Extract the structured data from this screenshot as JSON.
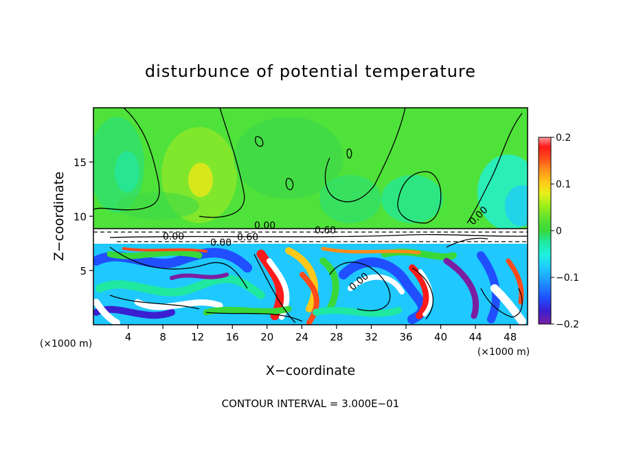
{
  "chart_data": {
    "type": "heatmap",
    "title": "disturbunce of potential temperature",
    "xlabel": "X−coordinate",
    "ylabel": "Z−coordinate",
    "x_unit_label": "(×1000 m)",
    "x_unit_label_right": "(×1000 m)",
    "footer": "CONTOUR INTERVAL = 3.000E−01",
    "xlim": [
      0,
      50
    ],
    "ylim": [
      0,
      20
    ],
    "x_ticks": [
      4,
      8,
      12,
      16,
      20,
      24,
      28,
      32,
      36,
      40,
      44,
      48
    ],
    "y_ticks": [
      5,
      10,
      15
    ],
    "colorbar": {
      "range": [
        -0.2,
        0.2
      ],
      "tick_values": [
        0.2,
        0.1,
        0,
        -0.1,
        -0.2
      ],
      "tick_labels": [
        "0.2",
        "0.1",
        "0",
        "−0.1",
        "−0.2"
      ],
      "colors": [
        "#7a1fa2",
        "#3a1fd0",
        "#1f4fff",
        "#1f8fff",
        "#1fc8ff",
        "#1ff0e0",
        "#1fe8a0",
        "#38d83a",
        "#5ae030",
        "#9aef1a",
        "#e8ef1a",
        "#ffc81a",
        "#ff8c1a",
        "#ff4a1a",
        "#ff1a1a",
        "#ff9a9a"
      ]
    },
    "contour_labels": [
      "0.00",
      "0.00",
      "0.60",
      "0.00",
      "0.60",
      "0.00",
      "0.00"
    ],
    "regions": {
      "upper_layer": {
        "z_range": [
          9,
          20
        ],
        "value_approx": 0.03
      },
      "inversion_band": {
        "z_range": [
          7.5,
          9
        ],
        "value_approx": 0.6
      },
      "lower_turbulent_layer": {
        "z_range": [
          0,
          7.5
        ],
        "value_range": [
          -0.2,
          0.2
        ]
      }
    }
  }
}
